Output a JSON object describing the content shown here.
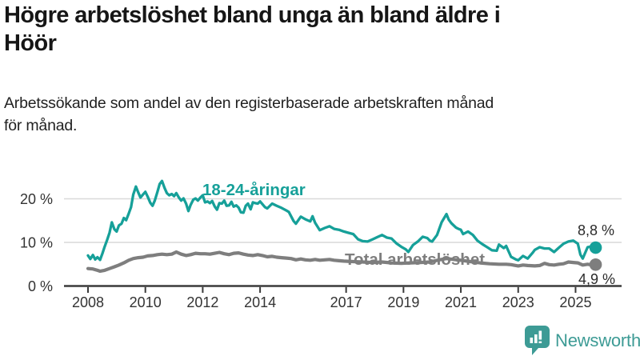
{
  "header": {
    "title_lines": [
      "Högre arbetslöshet bland unga än bland äldre i",
      "Höör"
    ],
    "subtitle_lines": [
      "Arbetssökande som andel av den registerbaserade arbetskraften månad",
      "för månad."
    ]
  },
  "colors": {
    "accent_teal": "#16a099",
    "gray_line": "#7e7e7e",
    "grid": "#d9d9d9",
    "axis": "#3a3a3a",
    "text_dark": "#161616",
    "logo_teal": "#3d9b95"
  },
  "logo": {
    "text": "Newsworthy",
    "icon": "bar-chart-speech-bubble-icon"
  },
  "chart_data": {
    "type": "line",
    "title": "Högre arbetslöshet bland unga än bland äldre i Höör",
    "subtitle": "Arbetssökande som andel av den registerbaserade arbetskraften månad för månad.",
    "xlabel": "",
    "ylabel": "",
    "unit": "%",
    "ylim": [
      0,
      26
    ],
    "xlim": [
      2007.9,
      2026.3
    ],
    "grid": "horizontal",
    "legend_position": "inline-labels",
    "y_ticks": [
      {
        "v": 0,
        "label": "0 %"
      },
      {
        "v": 10,
        "label": "10 %"
      },
      {
        "v": 20,
        "label": "20 %"
      }
    ],
    "x_ticks": [
      {
        "v": 2008,
        "label": "2008"
      },
      {
        "v": 2010,
        "label": "2010"
      },
      {
        "v": 2012,
        "label": "2012"
      },
      {
        "v": 2014,
        "label": "2014"
      },
      {
        "v": 2017,
        "label": "2017"
      },
      {
        "v": 2019,
        "label": "2019"
      },
      {
        "v": 2021,
        "label": "2021"
      },
      {
        "v": 2023,
        "label": "2023"
      },
      {
        "v": 2025,
        "label": "2025"
      }
    ],
    "series": [
      {
        "name": "18-24-åringar",
        "color": "#16a099",
        "end_label": "8,8 %",
        "end_value": 8.8,
        "points": [
          [
            2008.0,
            7.0
          ],
          [
            2008.08,
            6.2
          ],
          [
            2008.17,
            7.1
          ],
          [
            2008.25,
            6.1
          ],
          [
            2008.33,
            6.6
          ],
          [
            2008.42,
            6.0
          ],
          [
            2008.5,
            7.4
          ],
          [
            2008.58,
            9.0
          ],
          [
            2008.67,
            10.6
          ],
          [
            2008.75,
            12.2
          ],
          [
            2008.83,
            14.6
          ],
          [
            2008.92,
            13.0
          ],
          [
            2009.0,
            12.5
          ],
          [
            2009.08,
            13.9
          ],
          [
            2009.17,
            14.3
          ],
          [
            2009.25,
            15.6
          ],
          [
            2009.33,
            15.1
          ],
          [
            2009.42,
            16.6
          ],
          [
            2009.5,
            18.1
          ],
          [
            2009.58,
            21.0
          ],
          [
            2009.67,
            22.8
          ],
          [
            2009.75,
            21.5
          ],
          [
            2009.83,
            20.3
          ],
          [
            2009.92,
            21.0
          ],
          [
            2010.0,
            21.6
          ],
          [
            2010.08,
            20.5
          ],
          [
            2010.17,
            19.1
          ],
          [
            2010.25,
            18.4
          ],
          [
            2010.33,
            19.6
          ],
          [
            2010.42,
            21.6
          ],
          [
            2010.5,
            23.4
          ],
          [
            2010.58,
            24.1
          ],
          [
            2010.67,
            22.5
          ],
          [
            2010.75,
            21.3
          ],
          [
            2010.83,
            20.8
          ],
          [
            2010.92,
            21.1
          ],
          [
            2011.0,
            20.6
          ],
          [
            2011.08,
            21.3
          ],
          [
            2011.17,
            20.3
          ],
          [
            2011.25,
            19.6
          ],
          [
            2011.33,
            20.1
          ],
          [
            2011.42,
            18.9
          ],
          [
            2011.5,
            17.2
          ],
          [
            2011.58,
            18.6
          ],
          [
            2011.67,
            19.8
          ],
          [
            2011.75,
            20.1
          ],
          [
            2011.83,
            19.6
          ],
          [
            2011.92,
            20.3
          ],
          [
            2012.0,
            20.8
          ],
          [
            2012.08,
            19.2
          ],
          [
            2012.17,
            19.4
          ],
          [
            2012.25,
            19.0
          ],
          [
            2012.33,
            19.5
          ],
          [
            2012.42,
            18.2
          ],
          [
            2012.5,
            17.5
          ],
          [
            2012.58,
            19.0
          ],
          [
            2012.67,
            18.9
          ],
          [
            2012.75,
            19.6
          ],
          [
            2012.83,
            18.4
          ],
          [
            2012.92,
            18.5
          ],
          [
            2013.0,
            19.3
          ],
          [
            2013.08,
            18.2
          ],
          [
            2013.17,
            18.5
          ],
          [
            2013.25,
            18.0
          ],
          [
            2013.33,
            16.9
          ],
          [
            2013.42,
            16.8
          ],
          [
            2013.5,
            18.4
          ],
          [
            2013.58,
            18.9
          ],
          [
            2013.67,
            17.6
          ],
          [
            2013.75,
            19.2
          ],
          [
            2013.83,
            19.0
          ],
          [
            2013.92,
            18.9
          ],
          [
            2014.0,
            19.4
          ],
          [
            2014.17,
            18.1
          ],
          [
            2014.25,
            17.8
          ],
          [
            2014.42,
            18.9
          ],
          [
            2014.58,
            18.4
          ],
          [
            2014.75,
            17.9
          ],
          [
            2014.92,
            17.3
          ],
          [
            2015.0,
            17.0
          ],
          [
            2015.17,
            14.9
          ],
          [
            2015.25,
            14.3
          ],
          [
            2015.42,
            15.9
          ],
          [
            2015.58,
            15.3
          ],
          [
            2015.75,
            14.8
          ],
          [
            2015.83,
            16.0
          ],
          [
            2015.92,
            14.5
          ],
          [
            2016.08,
            12.8
          ],
          [
            2016.25,
            13.3
          ],
          [
            2016.42,
            13.7
          ],
          [
            2016.58,
            13.1
          ],
          [
            2016.75,
            12.9
          ],
          [
            2016.92,
            12.5
          ],
          [
            2017.08,
            12.2
          ],
          [
            2017.25,
            11.9
          ],
          [
            2017.42,
            10.7
          ],
          [
            2017.58,
            10.3
          ],
          [
            2017.75,
            10.2
          ],
          [
            2017.92,
            10.7
          ],
          [
            2018.08,
            11.2
          ],
          [
            2018.25,
            11.7
          ],
          [
            2018.42,
            11.1
          ],
          [
            2018.58,
            10.9
          ],
          [
            2018.75,
            9.8
          ],
          [
            2018.92,
            9.0
          ],
          [
            2019.08,
            8.4
          ],
          [
            2019.17,
            7.8
          ],
          [
            2019.33,
            9.4
          ],
          [
            2019.5,
            10.2
          ],
          [
            2019.67,
            11.3
          ],
          [
            2019.83,
            11.0
          ],
          [
            2019.92,
            10.4
          ],
          [
            2020.0,
            10.2
          ],
          [
            2020.17,
            11.7
          ],
          [
            2020.33,
            14.6
          ],
          [
            2020.5,
            16.5
          ],
          [
            2020.58,
            15.2
          ],
          [
            2020.67,
            14.4
          ],
          [
            2020.83,
            13.4
          ],
          [
            2020.92,
            13.1
          ],
          [
            2021.0,
            12.9
          ],
          [
            2021.08,
            11.9
          ],
          [
            2021.25,
            12.5
          ],
          [
            2021.42,
            11.7
          ],
          [
            2021.58,
            10.4
          ],
          [
            2021.75,
            9.6
          ],
          [
            2021.92,
            8.9
          ],
          [
            2022.08,
            8.2
          ],
          [
            2022.25,
            8.1
          ],
          [
            2022.33,
            9.5
          ],
          [
            2022.5,
            8.7
          ],
          [
            2022.58,
            9.2
          ],
          [
            2022.75,
            6.7
          ],
          [
            2022.92,
            6.1
          ],
          [
            2023.0,
            5.9
          ],
          [
            2023.17,
            6.9
          ],
          [
            2023.33,
            6.3
          ],
          [
            2023.5,
            7.6
          ],
          [
            2023.58,
            8.3
          ],
          [
            2023.75,
            8.9
          ],
          [
            2023.92,
            8.6
          ],
          [
            2024.08,
            8.6
          ],
          [
            2024.25,
            7.8
          ],
          [
            2024.42,
            8.8
          ],
          [
            2024.58,
            9.7
          ],
          [
            2024.75,
            10.2
          ],
          [
            2024.92,
            10.4
          ],
          [
            2025.08,
            9.7
          ],
          [
            2025.17,
            7.2
          ],
          [
            2025.25,
            6.3
          ],
          [
            2025.42,
            8.9
          ],
          [
            2025.58,
            9.1
          ],
          [
            2025.7,
            8.8
          ]
        ]
      },
      {
        "name": "Total arbetslöshet",
        "color": "#7e7e7e",
        "end_label": "4,9 %",
        "end_value": 4.9,
        "points": [
          [
            2008.0,
            4.0
          ],
          [
            2008.17,
            3.9
          ],
          [
            2008.33,
            3.6
          ],
          [
            2008.42,
            3.4
          ],
          [
            2008.58,
            3.6
          ],
          [
            2008.75,
            4.0
          ],
          [
            2008.92,
            4.4
          ],
          [
            2009.08,
            4.8
          ],
          [
            2009.25,
            5.3
          ],
          [
            2009.42,
            5.9
          ],
          [
            2009.58,
            6.3
          ],
          [
            2009.75,
            6.5
          ],
          [
            2009.92,
            6.6
          ],
          [
            2010.08,
            6.9
          ],
          [
            2010.25,
            7.0
          ],
          [
            2010.42,
            7.2
          ],
          [
            2010.58,
            7.3
          ],
          [
            2010.75,
            7.2
          ],
          [
            2010.92,
            7.3
          ],
          [
            2011.08,
            7.8
          ],
          [
            2011.25,
            7.3
          ],
          [
            2011.42,
            7.0
          ],
          [
            2011.58,
            7.2
          ],
          [
            2011.75,
            7.5
          ],
          [
            2011.92,
            7.4
          ],
          [
            2012.08,
            7.4
          ],
          [
            2012.25,
            7.3
          ],
          [
            2012.42,
            7.5
          ],
          [
            2012.58,
            7.7
          ],
          [
            2012.75,
            7.4
          ],
          [
            2012.92,
            7.2
          ],
          [
            2013.08,
            7.5
          ],
          [
            2013.25,
            7.6
          ],
          [
            2013.42,
            7.3
          ],
          [
            2013.58,
            7.1
          ],
          [
            2013.75,
            7.0
          ],
          [
            2013.92,
            7.2
          ],
          [
            2014.08,
            7.0
          ],
          [
            2014.25,
            6.7
          ],
          [
            2014.42,
            6.8
          ],
          [
            2014.58,
            6.6
          ],
          [
            2014.75,
            6.5
          ],
          [
            2014.92,
            6.4
          ],
          [
            2015.08,
            6.3
          ],
          [
            2015.25,
            6.0
          ],
          [
            2015.42,
            6.2
          ],
          [
            2015.58,
            6.0
          ],
          [
            2015.75,
            5.9
          ],
          [
            2015.92,
            6.1
          ],
          [
            2016.08,
            5.9
          ],
          [
            2016.25,
            6.0
          ],
          [
            2016.42,
            6.1
          ],
          [
            2016.58,
            5.9
          ],
          [
            2016.75,
            5.8
          ],
          [
            2016.92,
            5.7
          ],
          [
            2017.25,
            5.6
          ],
          [
            2017.58,
            5.5
          ],
          [
            2017.92,
            5.4
          ],
          [
            2018.25,
            5.5
          ],
          [
            2018.58,
            5.3
          ],
          [
            2018.92,
            5.2
          ],
          [
            2019.25,
            5.3
          ],
          [
            2019.58,
            5.4
          ],
          [
            2019.92,
            5.5
          ],
          [
            2020.25,
            6.0
          ],
          [
            2020.5,
            6.3
          ],
          [
            2020.75,
            6.1
          ],
          [
            2021.0,
            5.9
          ],
          [
            2021.33,
            5.6
          ],
          [
            2021.67,
            5.3
          ],
          [
            2022.0,
            5.1
          ],
          [
            2022.33,
            5.0
          ],
          [
            2022.58,
            5.0
          ],
          [
            2022.75,
            4.9
          ],
          [
            2022.92,
            4.7
          ],
          [
            2023.0,
            4.6
          ],
          [
            2023.17,
            4.8
          ],
          [
            2023.33,
            4.7
          ],
          [
            2023.58,
            4.6
          ],
          [
            2023.75,
            4.7
          ],
          [
            2023.92,
            5.2
          ],
          [
            2024.08,
            4.9
          ],
          [
            2024.25,
            4.8
          ],
          [
            2024.42,
            5.0
          ],
          [
            2024.58,
            5.1
          ],
          [
            2024.75,
            5.5
          ],
          [
            2024.92,
            5.4
          ],
          [
            2025.08,
            5.3
          ],
          [
            2025.25,
            4.8
          ],
          [
            2025.42,
            5.0
          ],
          [
            2025.58,
            4.8
          ],
          [
            2025.7,
            4.9
          ]
        ]
      }
    ]
  }
}
